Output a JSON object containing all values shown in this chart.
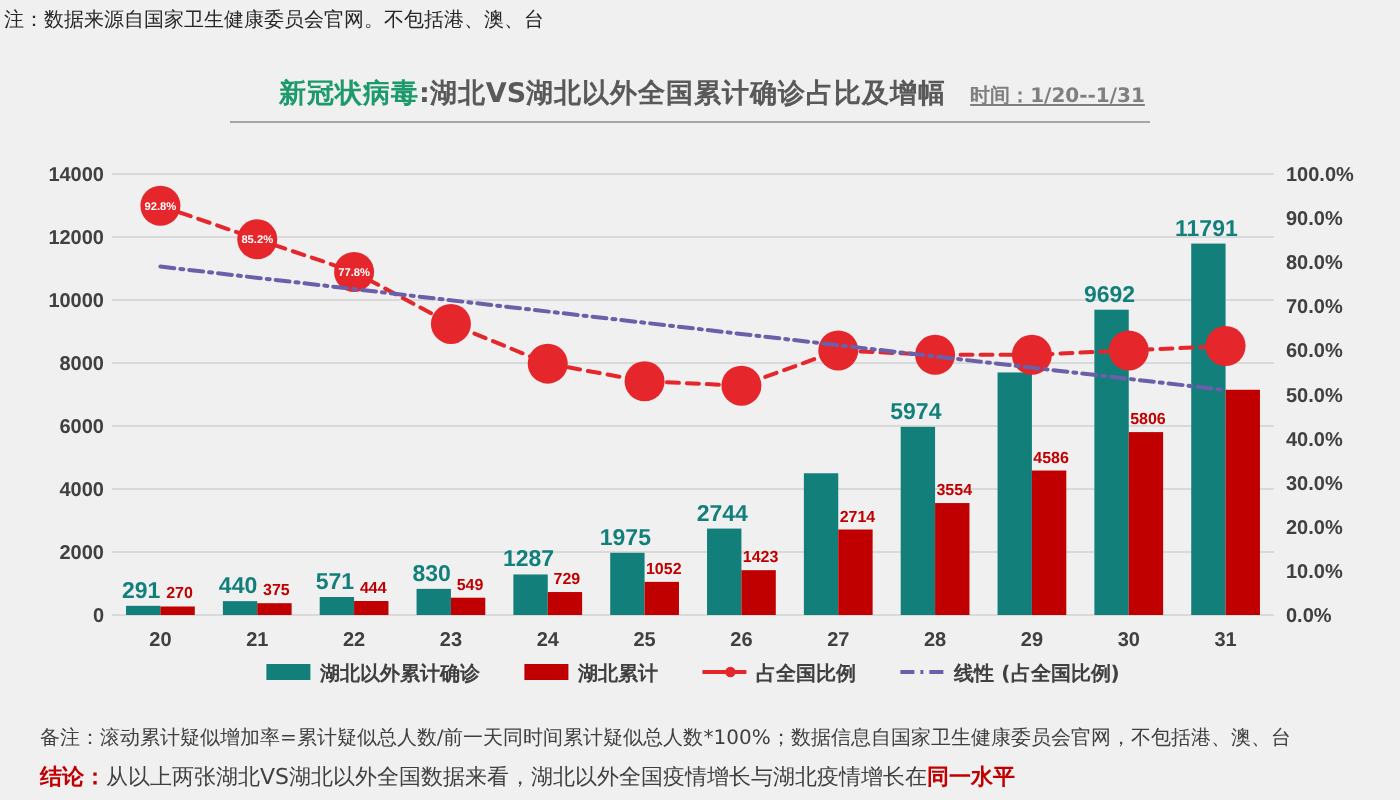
{
  "chart_data": {
    "type": "bar",
    "title": "**新冠状病毒**:湖北VS湖北以外全国累计确诊占比及增幅",
    "subtitle": "时间：1/20--1/31",
    "categories": [
      "20",
      "21",
      "22",
      "23",
      "24",
      "25",
      "26",
      "27",
      "28",
      "29",
      "30",
      "31"
    ],
    "series": [
      {
        "name": "湖北以外累计确诊",
        "color": "#127f7b",
        "values": [
          291,
          440,
          571,
          830,
          1287,
          1975,
          2744,
          4500,
          5974,
          7700,
          9692,
          11791
        ],
        "value_labels": [
          "291",
          "440",
          "571",
          "830",
          "1287",
          "1975",
          "2744",
          null,
          "5974",
          null,
          "9692",
          "11791"
        ]
      },
      {
        "name": "湖北累计",
        "color": "#c00000",
        "values": [
          270,
          375,
          444,
          549,
          729,
          1052,
          1423,
          2714,
          3554,
          4586,
          5806,
          7150
        ],
        "value_labels": [
          "270",
          "375",
          "444",
          "549",
          "729",
          "1052",
          "1423",
          "2714",
          "3554",
          "4586",
          "5806",
          null
        ]
      },
      {
        "name": "占全国比例",
        "type": "line",
        "axis": "y2",
        "color": "#e5262b",
        "marker": "circle",
        "line_style": "dashed",
        "values": [
          92.8,
          85.2,
          77.8,
          66,
          57,
          53,
          52,
          60,
          59,
          59,
          60,
          61
        ],
        "value_labels": [
          "92.8%",
          "85.2%",
          "77.8%",
          null,
          null,
          null,
          null,
          null,
          null,
          null,
          null,
          null
        ]
      },
      {
        "name": "线性 (占全国比例)",
        "type": "line",
        "axis": "y2",
        "color": "#6a5fa8",
        "line_style": "dashdot",
        "x": [
          "20",
          "31"
        ],
        "values": [
          79,
          51
        ]
      }
    ],
    "ylim": [
      0,
      14000
    ],
    "yticks": [
      0,
      2000,
      4000,
      6000,
      8000,
      10000,
      12000,
      14000
    ],
    "y2lim": [
      0,
      100
    ],
    "y2ticks": [
      {
        "value": 0,
        "label": "0.0%"
      },
      {
        "value": 10,
        "label": "10.0%"
      },
      {
        "value": 20,
        "label": "20.0%"
      },
      {
        "value": 30,
        "label": "30.0%"
      },
      {
        "value": 40,
        "label": "40.0%"
      },
      {
        "value": 50,
        "label": "50.0%"
      },
      {
        "value": 60,
        "label": "60.0%"
      },
      {
        "value": 70,
        "label": "70.0%"
      },
      {
        "value": 80,
        "label": "80.0%"
      },
      {
        "value": 90,
        "label": "90.0%"
      },
      {
        "value": 100,
        "label": "100.0%"
      }
    ],
    "grid": "y",
    "legend": "bottom",
    "annotations": [
      "注：数据来源自国家卫生健康委员会官网。不包括港、澳、台",
      "备注：滚动累计疑似增加率=累计疑似总人数/前一天同时间累计疑似总人数*100%；数据信息自国家卫生健康委员会官网，不包括港、澳、台",
      "**结论：**从以上两张湖北VS湖北以外全国数据来看，湖北以外全国疫情增长与湖北疫情增长在**同一水平**"
    ]
  }
}
